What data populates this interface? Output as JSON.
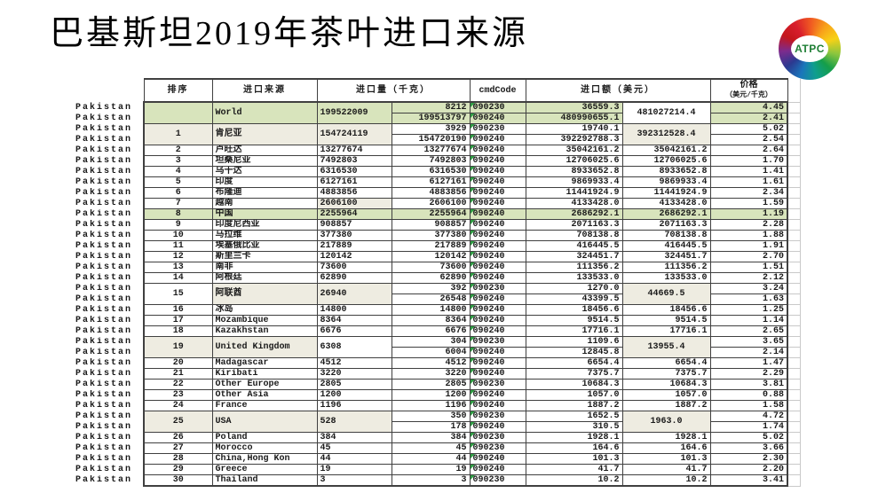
{
  "title": "巴基斯坦2019年茶叶进口来源",
  "logo": {
    "text": "ATPC"
  },
  "row_label": "Pakistan",
  "colors": {
    "highlight_green": "#d8e4bc",
    "shade_beige": "#eeece1",
    "triangle_green": "#2f9e44",
    "border_dark": "#404040"
  },
  "table": {
    "headers": {
      "rank": "排序",
      "source": "进口来源",
      "qty": "进口量（千克）",
      "cmd": "cmdCode",
      "value": "进口额（美元）",
      "price_line1": "价格",
      "price_line2": "（美元/千克）"
    },
    "rows": [
      {
        "rank": "",
        "name": "World",
        "qty": "199522009",
        "total": "481027214.4",
        "row_bg": "green",
        "total_bg": "white",
        "sub": [
          {
            "q": "8212",
            "c": "090230",
            "v": "36559.3",
            "p": "4.45"
          },
          {
            "q": "199513797",
            "c": "090240",
            "v": "480990655.1",
            "p": "2.41"
          }
        ]
      },
      {
        "rank": "1",
        "name": "肯尼亚",
        "qty": "154724119",
        "total": "392312528.4",
        "shade": [
          "rank",
          "name",
          "qty",
          "total"
        ],
        "sub": [
          {
            "q": "3929",
            "c": "090230",
            "v": "19740.1",
            "p": "5.02"
          },
          {
            "q": "154720190",
            "c": "090240",
            "v": "392292788.3",
            "p": "2.54"
          }
        ]
      },
      {
        "rank": "2",
        "name": "卢旺达",
        "qty": "13277674",
        "total": "35042161.2",
        "sub": [
          {
            "q": "13277674",
            "c": "090240",
            "v": "35042161.2",
            "p": "2.64"
          }
        ]
      },
      {
        "rank": "3",
        "name": "坦桑尼亚",
        "qty": "7492803",
        "total": "12706025.6",
        "sub": [
          {
            "q": "7492803",
            "c": "090240",
            "v": "12706025.6",
            "p": "1.70"
          }
        ]
      },
      {
        "rank": "4",
        "name": "乌干达",
        "qty": "6316530",
        "total": "8933652.8",
        "sub": [
          {
            "q": "6316530",
            "c": "090240",
            "v": "8933652.8",
            "p": "1.41"
          }
        ]
      },
      {
        "rank": "5",
        "name": "印度",
        "qty": "6127161",
        "total": "9869933.4",
        "sub": [
          {
            "q": "6127161",
            "c": "090240",
            "v": "9869933.4",
            "p": "1.61"
          }
        ]
      },
      {
        "rank": "6",
        "name": "布隆迪",
        "qty": "4883856",
        "total": "11441924.9",
        "sub": [
          {
            "q": "4883856",
            "c": "090240",
            "v": "11441924.9",
            "p": "2.34"
          }
        ]
      },
      {
        "rank": "7",
        "name": "越南",
        "qty": "2606100",
        "total": "4133428.0",
        "shade": [
          "qty"
        ],
        "sub": [
          {
            "q": "2606100",
            "c": "090240",
            "v": "4133428.0",
            "p": "1.59"
          }
        ]
      },
      {
        "rank": "8",
        "name": "中国",
        "qty": "2255964",
        "total": "2686292.1",
        "row_bg": "green",
        "sub": [
          {
            "q": "2255964",
            "c": "090240",
            "v": "2686292.1",
            "p": "1.19"
          }
        ]
      },
      {
        "rank": "9",
        "name": "印度尼西亚",
        "qty": "908857",
        "total": "2071163.3",
        "sub": [
          {
            "q": "908857",
            "c": "090240",
            "v": "2071163.3",
            "p": "2.28"
          }
        ]
      },
      {
        "rank": "10",
        "name": "马拉维",
        "qty": "377380",
        "total": "708138.8",
        "sub": [
          {
            "q": "377380",
            "c": "090240",
            "v": "708138.8",
            "p": "1.88"
          }
        ]
      },
      {
        "rank": "11",
        "name": "埃塞俄比亚",
        "qty": "217889",
        "total": "416445.5",
        "sub": [
          {
            "q": "217889",
            "c": "090240",
            "v": "416445.5",
            "p": "1.91"
          }
        ]
      },
      {
        "rank": "12",
        "name": "斯里兰卡",
        "qty": "120142",
        "total": "324451.7",
        "sub": [
          {
            "q": "120142",
            "c": "090240",
            "v": "324451.7",
            "p": "2.70"
          }
        ]
      },
      {
        "rank": "13",
        "name": "南非",
        "qty": "73600",
        "total": "111356.2",
        "sub": [
          {
            "q": "73600",
            "c": "090240",
            "v": "111356.2",
            "p": "1.51"
          }
        ]
      },
      {
        "rank": "14",
        "name": "阿根廷",
        "qty": "62890",
        "total": "133533.0",
        "sub": [
          {
            "q": "62890",
            "c": "090240",
            "v": "133533.0",
            "p": "2.12"
          }
        ]
      },
      {
        "rank": "15",
        "name": "阿联酋",
        "qty": "26940",
        "total": "44669.5",
        "shade": [
          "name",
          "qty",
          "total"
        ],
        "sub": [
          {
            "q": "392",
            "c": "090230",
            "v": "1270.0",
            "p": "3.24"
          },
          {
            "q": "26548",
            "c": "090240",
            "v": "43399.5",
            "p": "1.63"
          }
        ]
      },
      {
        "rank": "16",
        "name": "冰岛",
        "qty": "14800",
        "total": "18456.6",
        "sub": [
          {
            "q": "14800",
            "c": "090240",
            "v": "18456.6",
            "p": "1.25"
          }
        ]
      },
      {
        "rank": "17",
        "name": "Mozambique",
        "qty": "8364",
        "total": "9514.5",
        "sub": [
          {
            "q": "8364",
            "c": "090240",
            "v": "9514.5",
            "p": "1.14"
          }
        ]
      },
      {
        "rank": "18",
        "name": "Kazakhstan",
        "qty": "6676",
        "total": "17716.1",
        "sub": [
          {
            "q": "6676",
            "c": "090240",
            "v": "17716.1",
            "p": "2.65"
          }
        ]
      },
      {
        "rank": "19",
        "name": "United Kingdom",
        "qty": "6308",
        "total": "13955.4",
        "shade": [
          "rank",
          "name",
          "total"
        ],
        "sub": [
          {
            "q": "304",
            "c": "090230",
            "v": "1109.6",
            "p": "3.65"
          },
          {
            "q": "6004",
            "c": "090240",
            "v": "12845.8",
            "p": "2.14"
          }
        ]
      },
      {
        "rank": "20",
        "name": "Madagascar",
        "qty": "4512",
        "total": "6654.4",
        "sub": [
          {
            "q": "4512",
            "c": "090240",
            "v": "6654.4",
            "p": "1.47"
          }
        ]
      },
      {
        "rank": "21",
        "name": "Kiribati",
        "qty": "3220",
        "total": "7375.7",
        "sub": [
          {
            "q": "3220",
            "c": "090240",
            "v": "7375.7",
            "p": "2.29"
          }
        ]
      },
      {
        "rank": "22",
        "name": "Other Europe",
        "qty": "2805",
        "total": "10684.3",
        "sub": [
          {
            "q": "2805",
            "c": "090230",
            "v": "10684.3",
            "p": "3.81"
          }
        ]
      },
      {
        "rank": "23",
        "name": "Other Asia",
        "qty": "1200",
        "total": "1057.0",
        "sub": [
          {
            "q": "1200",
            "c": "090240",
            "v": "1057.0",
            "p": "0.88"
          }
        ]
      },
      {
        "rank": "24",
        "name": "France",
        "qty": "1196",
        "total": "1887.2",
        "sub": [
          {
            "q": "1196",
            "c": "090240",
            "v": "1887.2",
            "p": "1.58"
          }
        ]
      },
      {
        "rank": "25",
        "name": "USA",
        "qty": "528",
        "total": "1963.0",
        "shade": [
          "rank",
          "name",
          "qty",
          "total"
        ],
        "sub": [
          {
            "q": "350",
            "c": "090230",
            "v": "1652.5",
            "p": "4.72"
          },
          {
            "q": "178",
            "c": "090240",
            "v": "310.5",
            "p": "1.74"
          }
        ]
      },
      {
        "rank": "26",
        "name": "Poland",
        "qty": "384",
        "total": "1928.1",
        "sub": [
          {
            "q": "384",
            "c": "090230",
            "v": "1928.1",
            "p": "5.02"
          }
        ]
      },
      {
        "rank": "27",
        "name": "Morocco",
        "qty": "45",
        "total": "164.6",
        "sub": [
          {
            "q": "45",
            "c": "090230",
            "v": "164.6",
            "p": "3.66"
          }
        ]
      },
      {
        "rank": "28",
        "name": "China,Hong Kon",
        "qty": "44",
        "total": "101.3",
        "sub": [
          {
            "q": "44",
            "c": "090240",
            "v": "101.3",
            "p": "2.30"
          }
        ]
      },
      {
        "rank": "29",
        "name": "Greece",
        "qty": "19",
        "total": "41.7",
        "sub": [
          {
            "q": "19",
            "c": "090240",
            "v": "41.7",
            "p": "2.20"
          }
        ]
      },
      {
        "rank": "30",
        "name": "Thailand",
        "qty": "3",
        "total": "10.2",
        "sub": [
          {
            "q": "3",
            "c": "090230",
            "v": "10.2",
            "p": "3.41"
          }
        ]
      }
    ]
  }
}
